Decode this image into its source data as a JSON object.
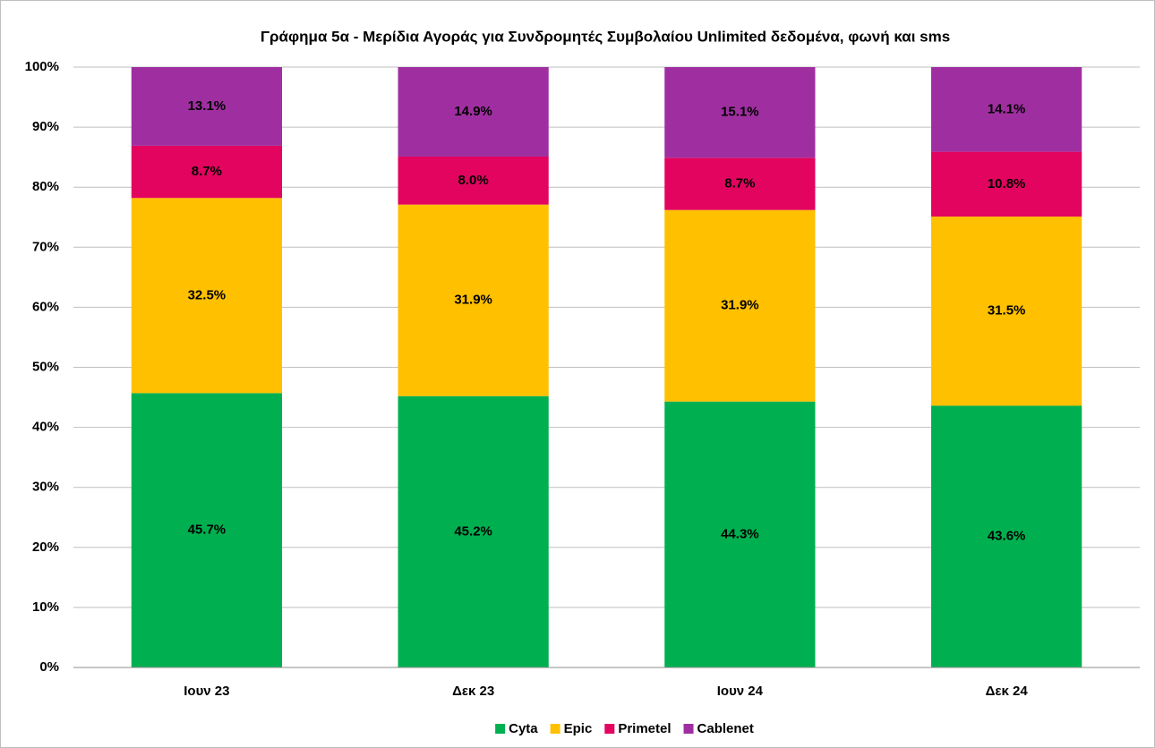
{
  "chart_data": {
    "type": "stacked_bar",
    "title": "Γράφημα 5α - Μερίδια Αγοράς για Συνδρομητές Συμβολαίου Unlimited δεδομένα, φωνή και sms",
    "categories": [
      "Ιουν 23",
      "Δεκ 23",
      "Ιουν 24",
      "Δεκ 24"
    ],
    "series": [
      {
        "name": "Cyta",
        "color": "#00b050",
        "values": [
          45.7,
          45.2,
          44.3,
          43.6
        ],
        "value_labels": [
          "45.7%",
          "45.2%",
          "44.3%",
          "43.6%"
        ]
      },
      {
        "name": "Epic",
        "color": "#ffc000",
        "values": [
          32.5,
          31.9,
          31.9,
          31.5
        ],
        "value_labels": [
          "32.5%",
          "31.9%",
          "31.9%",
          "31.5%"
        ]
      },
      {
        "name": "Primetel",
        "color": "#e2045f",
        "values": [
          8.7,
          8.0,
          8.7,
          10.8
        ],
        "value_labels": [
          "8.7%",
          "8.0%",
          "8.7%",
          "10.8%"
        ]
      },
      {
        "name": "Cablenet",
        "color": "#9f2fa1",
        "values": [
          13.1,
          14.9,
          15.1,
          14.1
        ],
        "value_labels": [
          "13.1%",
          "14.9%",
          "15.1%",
          "14.1%"
        ]
      }
    ],
    "ylim": [
      0,
      100
    ],
    "yticks": [
      {
        "value": 0,
        "label": "0%"
      },
      {
        "value": 10,
        "label": "10%"
      },
      {
        "value": 20,
        "label": "20%"
      },
      {
        "value": 30,
        "label": "30%"
      },
      {
        "value": 40,
        "label": "40%"
      },
      {
        "value": 50,
        "label": "50%"
      },
      {
        "value": 60,
        "label": "60%"
      },
      {
        "value": 70,
        "label": "70%"
      },
      {
        "value": 80,
        "label": "80%"
      },
      {
        "value": 90,
        "label": "90%"
      },
      {
        "value": 100,
        "label": "100%"
      }
    ],
    "grid": true,
    "legend": "bottom"
  }
}
